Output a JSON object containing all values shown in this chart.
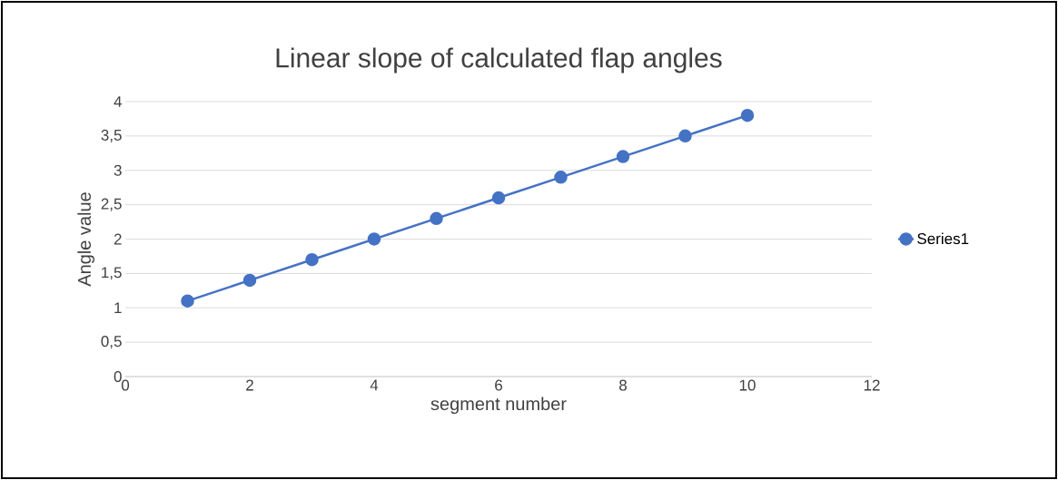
{
  "chart_data": {
    "type": "line",
    "title": "Linear slope of calculated flap angles",
    "xlabel": "segment number",
    "ylabel": "Angle value",
    "x": [
      1,
      2,
      3,
      4,
      5,
      6,
      7,
      8,
      9,
      10
    ],
    "series": [
      {
        "name": "Series1",
        "color": "#4472c4",
        "values": [
          1.1,
          1.4,
          1.7,
          2.0,
          2.3,
          2.6,
          2.9,
          3.2,
          3.5,
          3.8
        ]
      }
    ],
    "xlim": [
      0,
      12
    ],
    "xticks": [
      0,
      2,
      4,
      6,
      8,
      10,
      12
    ],
    "ylim": [
      0,
      4
    ],
    "yticks": [
      0,
      {
        "value": 0.5,
        "label": "0,5"
      },
      1,
      {
        "value": 1.5,
        "label": "1,5"
      },
      2,
      {
        "value": 2.5,
        "label": "2,5"
      },
      3,
      {
        "value": 3.5,
        "label": "3,5"
      },
      4
    ],
    "grid": "y",
    "legend": "right",
    "marker": "circle",
    "line_style": "solid"
  }
}
